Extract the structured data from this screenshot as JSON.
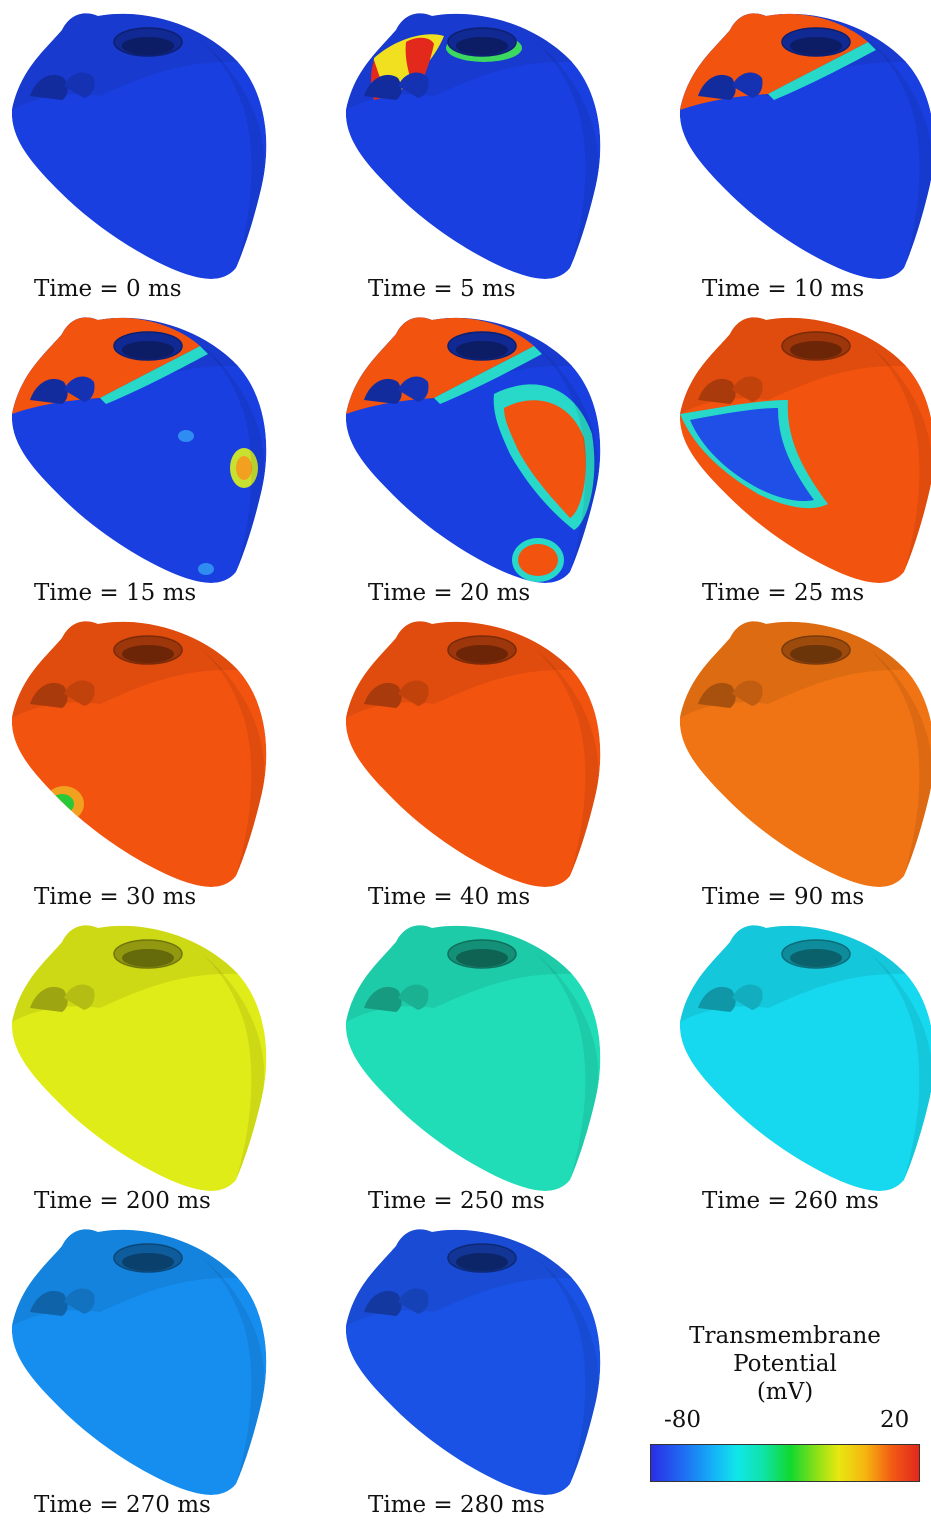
{
  "figure": {
    "panels": [
      {
        "caption": "Time = 0 ms",
        "time_ms": 0,
        "base_color": "#1a3fe0",
        "patches": []
      },
      {
        "caption": "Time = 5 ms",
        "time_ms": 5,
        "base_color": "#1a3fe0",
        "patches": [
          "valve-excitation"
        ]
      },
      {
        "caption": "Time = 10 ms",
        "time_ms": 10,
        "base_color": "#1a3fe0",
        "patches": [
          "base-depolarized"
        ]
      },
      {
        "caption": "Time = 15 ms",
        "time_ms": 15,
        "base_color": "#1a3fe0",
        "patches": [
          "base-depolarized",
          "lateral-spot"
        ]
      },
      {
        "caption": "Time = 20 ms",
        "time_ms": 20,
        "base_color": "#1a3fe0",
        "patches": [
          "base-depolarized",
          "wavefront-right"
        ]
      },
      {
        "caption": "Time = 25 ms",
        "time_ms": 25,
        "base_color": "#f2530f",
        "patches": [
          "remaining-septum"
        ]
      },
      {
        "caption": "Time = 30 ms",
        "time_ms": 30,
        "base_color": "#f2530f",
        "patches": [
          "apex-spot"
        ]
      },
      {
        "caption": "Time = 40 ms",
        "time_ms": 40,
        "base_color": "#f2530f",
        "patches": []
      },
      {
        "caption": "Time = 90 ms",
        "time_ms": 90,
        "base_color": "#f07414",
        "patches": []
      },
      {
        "caption": "Time = 200 ms",
        "time_ms": 200,
        "base_color": "#e0ec18",
        "patches": []
      },
      {
        "caption": "Time = 250 ms",
        "time_ms": 250,
        "base_color": "#20ddb8",
        "patches": []
      },
      {
        "caption": "Time = 260 ms",
        "time_ms": 260,
        "base_color": "#16d8ee",
        "patches": []
      },
      {
        "caption": "Time = 270 ms",
        "time_ms": 270,
        "base_color": "#168ef0",
        "patches": []
      },
      {
        "caption": "Time = 280 ms",
        "time_ms": 280,
        "base_color": "#1b52e6",
        "patches": []
      }
    ],
    "colorbar": {
      "title_line1": "Transmembrane",
      "title_line2": "Potential",
      "title_line3": "(mV)",
      "min_label": "-80",
      "max_label": "20"
    }
  }
}
